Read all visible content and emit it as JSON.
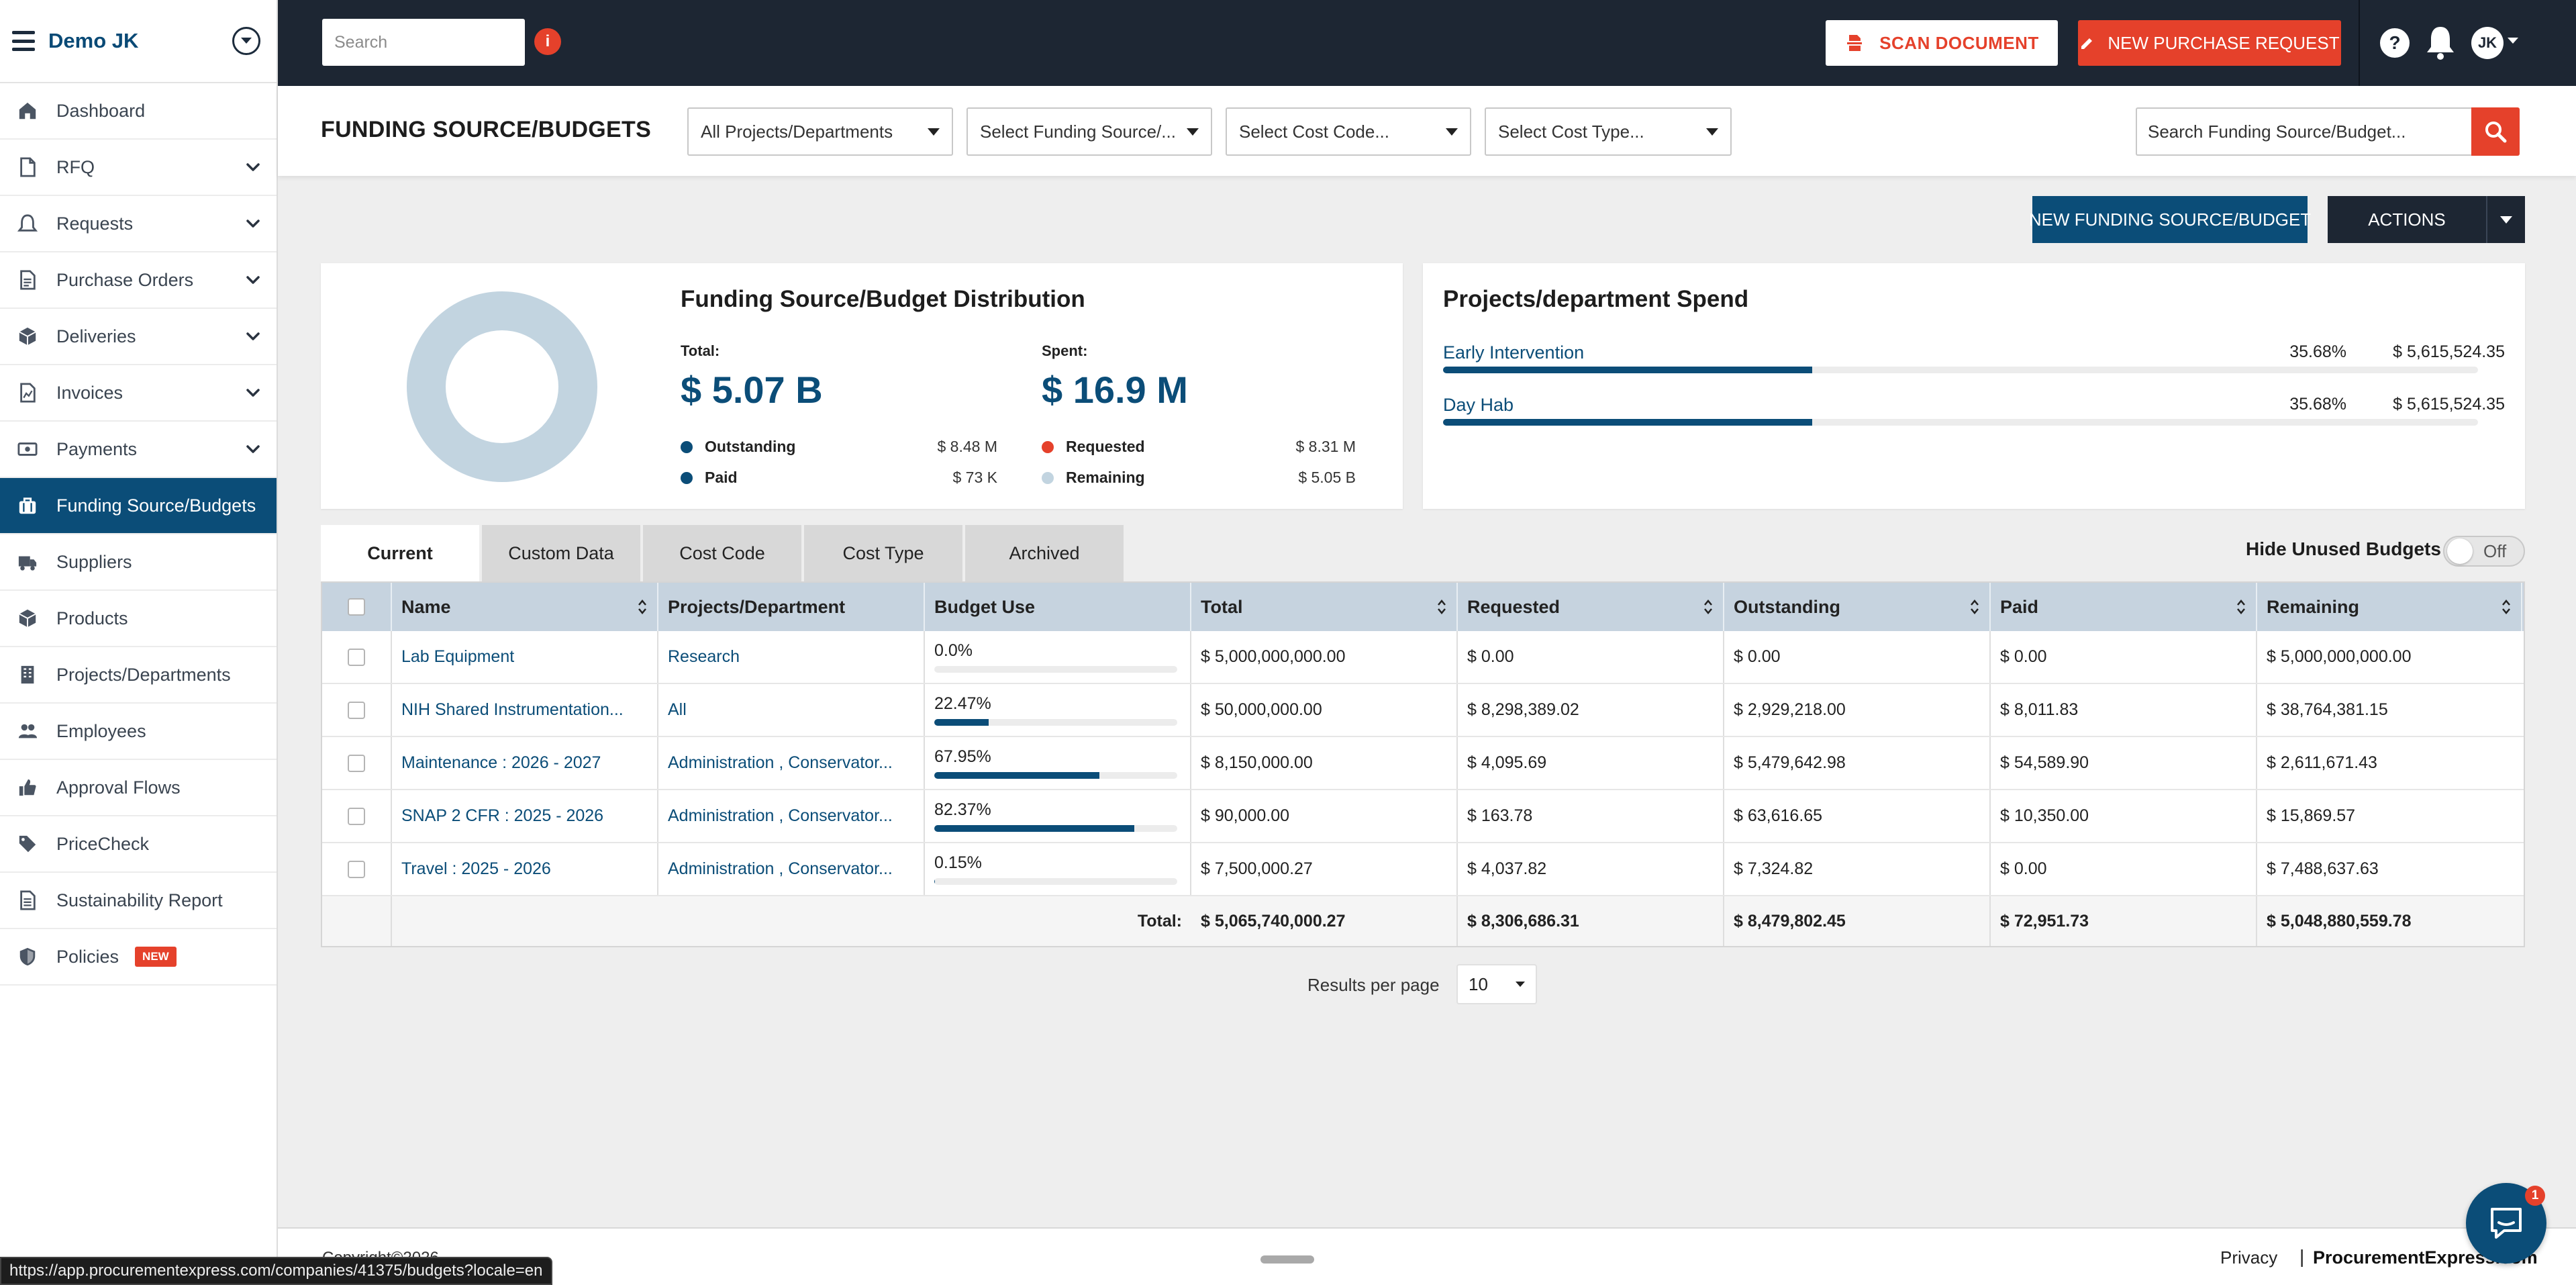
{
  "brand": "Demo JK",
  "colors": {
    "primary": "#0b4d78",
    "accent": "#e5412b",
    "topbar": "#1d2633",
    "donut": "#c2d4e0"
  },
  "sidebar": {
    "items": [
      {
        "label": "Dashboard",
        "icon": "home-icon",
        "chevron": false,
        "active": false
      },
      {
        "label": "RFQ",
        "icon": "document-icon",
        "chevron": true,
        "active": false
      },
      {
        "label": "Requests",
        "icon": "bell-outline-icon",
        "chevron": true,
        "active": false
      },
      {
        "label": "Purchase Orders",
        "icon": "file-list-icon",
        "chevron": true,
        "active": false
      },
      {
        "label": "Deliveries",
        "icon": "box-icon",
        "chevron": true,
        "active": false
      },
      {
        "label": "Invoices",
        "icon": "invoice-icon",
        "chevron": true,
        "active": false
      },
      {
        "label": "Payments",
        "icon": "money-icon",
        "chevron": true,
        "active": false
      },
      {
        "label": "Funding Source/Budgets",
        "icon": "briefcase-icon",
        "chevron": false,
        "active": true
      },
      {
        "label": "Suppliers",
        "icon": "truck-icon",
        "chevron": false,
        "active": false
      },
      {
        "label": "Products",
        "icon": "cube-icon",
        "chevron": false,
        "active": false
      },
      {
        "label": "Projects/Departments",
        "icon": "building-icon",
        "chevron": false,
        "active": false
      },
      {
        "label": "Employees",
        "icon": "users-icon",
        "chevron": false,
        "active": false
      },
      {
        "label": "Approval Flows",
        "icon": "thumbs-up-icon",
        "chevron": false,
        "active": false
      },
      {
        "label": "PriceCheck",
        "icon": "tag-icon",
        "chevron": false,
        "active": false
      },
      {
        "label": "Sustainability Report",
        "icon": "report-icon",
        "chevron": false,
        "active": false
      },
      {
        "label": "Policies",
        "icon": "shield-icon",
        "chevron": false,
        "active": false,
        "badge": "NEW"
      }
    ]
  },
  "topbar": {
    "search_placeholder": "Search",
    "info_badge": "i",
    "scan_label": "SCAN DOCUMENT",
    "new_pr_label": "NEW PURCHASE REQUEST",
    "avatar_initials": "JK"
  },
  "subheader": {
    "title": "FUNDING SOURCE/BUDGETS",
    "filters": [
      "All Projects/Departments",
      "Select Funding Source/...",
      "Select Cost Code...",
      "Select Cost Type..."
    ],
    "search_placeholder": "Search Funding Source/Budget..."
  },
  "actions": {
    "new_funding_label": "NEW FUNDING SOURCE/BUDGET",
    "actions_label": "ACTIONS"
  },
  "distribution": {
    "title": "Funding Source/Budget Distribution",
    "total_label": "Total:",
    "total_value": "$ 5.07 B",
    "spent_label": "Spent:",
    "spent_value": "$ 16.9 M",
    "legend": [
      {
        "label": "Outstanding",
        "value": "$ 8.48 M",
        "color": "#0b4d78"
      },
      {
        "label": "Paid",
        "value": "$ 73 K",
        "color": "#0b4d78"
      },
      {
        "label": "Requested",
        "value": "$ 8.31 M",
        "color": "#e5412b"
      },
      {
        "label": "Remaining",
        "value": "$ 5.05 B",
        "color": "#c2d4e0"
      }
    ]
  },
  "spend": {
    "title": "Projects/department Spend",
    "rows": [
      {
        "name": "Early Intervention",
        "pct": "35.68%",
        "amount": "$ 5,615,524.35",
        "fill": 0.3568
      },
      {
        "name": "Day Hab",
        "pct": "35.68%",
        "amount": "$ 5,615,524.35",
        "fill": 0.3568
      }
    ]
  },
  "tabs": [
    {
      "label": "Current",
      "active": true
    },
    {
      "label": "Custom Data",
      "active": false
    },
    {
      "label": "Cost Code",
      "active": false
    },
    {
      "label": "Cost Type",
      "active": false
    },
    {
      "label": "Archived",
      "active": false
    }
  ],
  "hide_unused": {
    "label": "Hide Unused Budgets",
    "state": "Off"
  },
  "table": {
    "headers": [
      "Name",
      "Projects/Department",
      "Budget Use",
      "Total",
      "Requested",
      "Outstanding",
      "Paid",
      "Remaining"
    ],
    "rows": [
      {
        "name": "Lab Equipment",
        "project": "Research",
        "use": "0.0%",
        "use_fill": 0.0,
        "total": "$ 5,000,000,000.00",
        "requested": "$ 0.00",
        "outstanding": "$ 0.00",
        "paid": "$ 0.00",
        "remaining": "$ 5,000,000,000.00"
      },
      {
        "name": "NIH Shared Instrumentation...",
        "project": "All",
        "use": "22.47%",
        "use_fill": 0.2247,
        "total": "$ 50,000,000.00",
        "requested": "$ 8,298,389.02",
        "outstanding": "$ 2,929,218.00",
        "paid": "$ 8,011.83",
        "remaining": "$ 38,764,381.15"
      },
      {
        "name": "Maintenance : 2026 - 2027",
        "project": "Administration , Conservator...",
        "use": "67.95%",
        "use_fill": 0.6795,
        "total": "$ 8,150,000.00",
        "requested": "$ 4,095.69",
        "outstanding": "$ 5,479,642.98",
        "paid": "$ 54,589.90",
        "remaining": "$ 2,611,671.43"
      },
      {
        "name": "SNAP 2 CFR : 2025 - 2026",
        "project": "Administration , Conservator...",
        "use": "82.37%",
        "use_fill": 0.8237,
        "total": "$ 90,000.00",
        "requested": "$ 163.78",
        "outstanding": "$ 63,616.65",
        "paid": "$ 10,350.00",
        "remaining": "$ 15,869.57"
      },
      {
        "name": "Travel : 2025 - 2026",
        "project": "Administration , Conservator...",
        "use": "0.15%",
        "use_fill": 0.0015,
        "total": "$ 7,500,000.27",
        "requested": "$ 4,037.82",
        "outstanding": "$ 7,324.82",
        "paid": "$ 0.00",
        "remaining": "$ 7,488,637.63"
      }
    ],
    "totals": {
      "label": "Total:",
      "total": "$ 5,065,740,000.27",
      "requested": "$ 8,306,686.31",
      "outstanding": "$ 8,479,802.45",
      "paid": "$ 72,951.73",
      "remaining": "$ 5,048,880,559.78"
    }
  },
  "pagination": {
    "label": "Results per page",
    "value": "10"
  },
  "footer": {
    "copyright": "Copyright©2026",
    "privacy": "Privacy",
    "separator": "|",
    "brand": "ProcurementExpress.com"
  },
  "status_url": "https://app.procurementexpress.com/companies/41375/budgets?locale=en",
  "chat_badge": "1"
}
